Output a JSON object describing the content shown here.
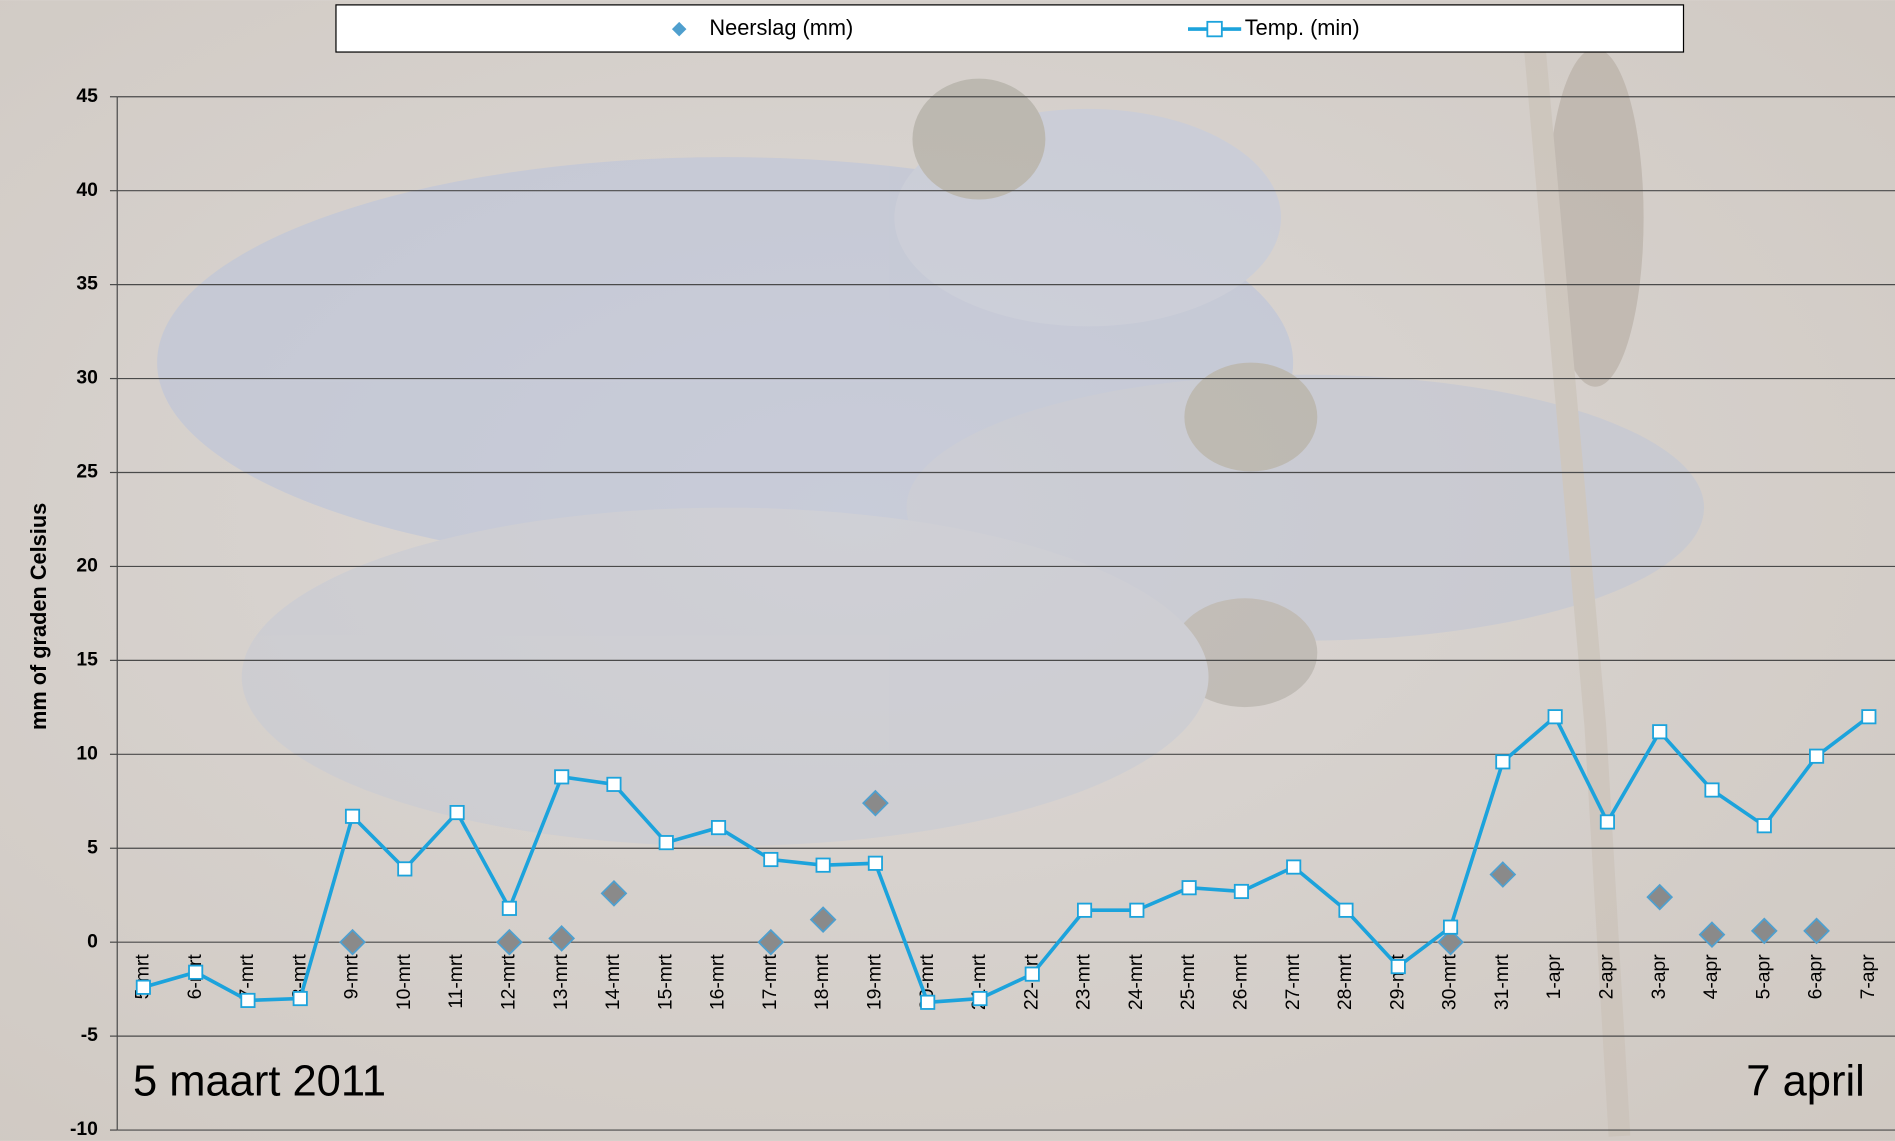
{
  "chart_data": {
    "type": "line",
    "y_label": "mm of graden Celsius",
    "annotations": [
      "5 maart 2011",
      "7 april"
    ],
    "categories": [
      "5-mrt",
      "6-mrt",
      "7-mrt",
      "8-mrt",
      "9-mrt",
      "10-mrt",
      "11-mrt",
      "12-mrt",
      "13-mrt",
      "14-mrt",
      "15-mrt",
      "16-mrt",
      "17-mrt",
      "18-mrt",
      "19-mrt",
      "20-mrt",
      "21-mrt",
      "22-mrt",
      "23-mrt",
      "24-mrt",
      "25-mrt",
      "26-mrt",
      "27-mrt",
      "28-mrt",
      "29-mrt",
      "30-mrt",
      "31-mrt",
      "1-apr",
      "2-apr",
      "3-apr",
      "4-apr",
      "5-apr",
      "6-apr",
      "7-apr"
    ],
    "series": [
      {
        "name": "Neerslag (mm)",
        "type": "scatter",
        "color": "#4f9fce",
        "values": [
          null,
          null,
          null,
          null,
          0,
          null,
          null,
          0,
          0.2,
          2.6,
          null,
          null,
          0,
          1.2,
          7.4,
          null,
          null,
          null,
          null,
          null,
          null,
          null,
          null,
          null,
          null,
          0,
          3.6,
          null,
          null,
          2.4,
          0.4,
          0.6,
          0.6,
          null
        ]
      },
      {
        "name": "Temp. (min)",
        "type": "line",
        "color": "#1ca3dc",
        "values": [
          -2.4,
          -1.6,
          -3.1,
          -3.0,
          6.7,
          3.9,
          6.9,
          1.8,
          8.8,
          8.4,
          5.3,
          6.1,
          4.4,
          4.1,
          4.2,
          -3.2,
          -3.0,
          -1.7,
          1.7,
          1.7,
          2.9,
          2.7,
          4.0,
          1.7,
          -1.3,
          0.8,
          9.6,
          12.0,
          6.4,
          11.2,
          8.1,
          6.2,
          9.9,
          12.0
        ]
      }
    ],
    "ylim": [
      -10,
      45
    ],
    "yticks": [
      -10,
      -5,
      0,
      5,
      10,
      15,
      20,
      25,
      30,
      35,
      40,
      45
    ],
    "grid": true,
    "legend": "top"
  }
}
